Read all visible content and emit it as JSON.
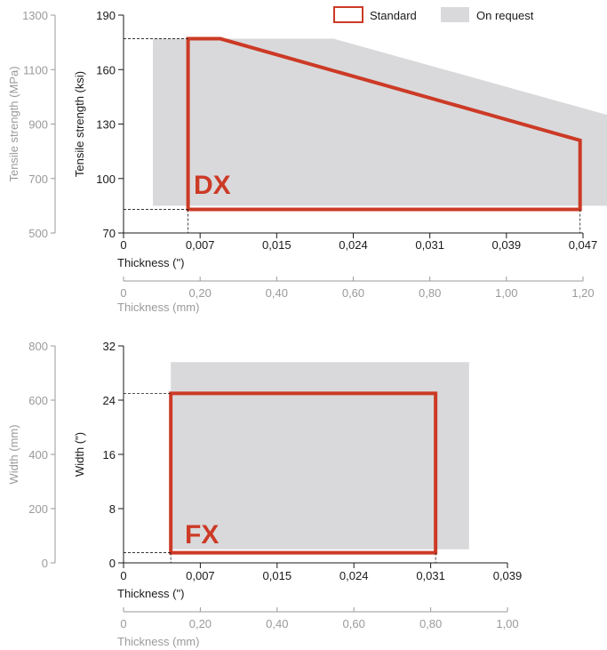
{
  "legend": {
    "standard": "Standard",
    "on_request": "On request"
  },
  "colors": {
    "standard": "#cc3a26",
    "on_request": "#d9d9db",
    "axis_dark": "#1a1a1a",
    "axis_grey": "#9a9a9a"
  },
  "chart_data": [
    {
      "type": "area",
      "label": "DX",
      "x_axis": {
        "label": "Thickness (\")",
        "ticks": [
          "0",
          "0,007",
          "0,015",
          "0,024",
          "0,031",
          "0,039",
          "0,047"
        ],
        "range": [
          0,
          0.047
        ]
      },
      "x_axis_secondary": {
        "label": "Thickness (mm)",
        "ticks": [
          "0",
          "0,20",
          "0,40",
          "0,60",
          "0,80",
          "1,00",
          "1,20"
        ],
        "range": [
          0,
          1.2
        ]
      },
      "y_axis": {
        "label": "Tensile strength (ksi)",
        "ticks": [
          "70",
          "100",
          "130",
          "160",
          "190"
        ],
        "range": [
          70,
          190
        ]
      },
      "y_axis_secondary": {
        "label": "Tensile strength (MPa)",
        "ticks": [
          "500",
          "700",
          "900",
          "1100",
          "1300"
        ],
        "range": [
          500,
          1300
        ]
      },
      "series": [
        {
          "name": "On request",
          "points": [
            [
              0.003,
              85
            ],
            [
              0.003,
              177
            ],
            [
              0.0215,
              177
            ],
            [
              0.0515,
              132
            ],
            [
              0.0515,
              85
            ]
          ]
        },
        {
          "name": "Standard",
          "points": [
            [
              0.0066,
              83
            ],
            [
              0.0066,
              177
            ],
            [
              0.0099,
              177
            ],
            [
              0.0467,
              121
            ],
            [
              0.0467,
              83
            ]
          ]
        }
      ],
      "grid": false,
      "legend_position": "top-right"
    },
    {
      "type": "area",
      "label": "FX",
      "x_axis": {
        "label": "Thickness (\")",
        "ticks": [
          "0",
          "0,007",
          "0,015",
          "0,024",
          "0,031",
          "0,039"
        ],
        "range": [
          0,
          0.039
        ]
      },
      "x_axis_secondary": {
        "label": "Thickness (mm)",
        "ticks": [
          "0",
          "0,20",
          "0,40",
          "0,60",
          "0,80",
          "1,00"
        ],
        "range": [
          0,
          1.0
        ]
      },
      "y_axis": {
        "label": "Width (\")",
        "ticks": [
          "0",
          "8",
          "16",
          "24",
          "32"
        ],
        "range": [
          0,
          32
        ]
      },
      "y_axis_secondary": {
        "label": "Width (mm)",
        "ticks": [
          "0",
          "200",
          "400",
          "600",
          "800"
        ],
        "range": [
          0,
          800
        ]
      },
      "series": [
        {
          "name": "On request",
          "points": [
            [
              0.0048,
              2
            ],
            [
              0.0048,
              29.6
            ],
            [
              0.0351,
              29.6
            ],
            [
              0.0351,
              2
            ]
          ]
        },
        {
          "name": "Standard",
          "points": [
            [
              0.0048,
              1.5
            ],
            [
              0.0048,
              25
            ],
            [
              0.0317,
              25
            ],
            [
              0.0317,
              1.5
            ]
          ]
        }
      ],
      "grid": false
    }
  ]
}
